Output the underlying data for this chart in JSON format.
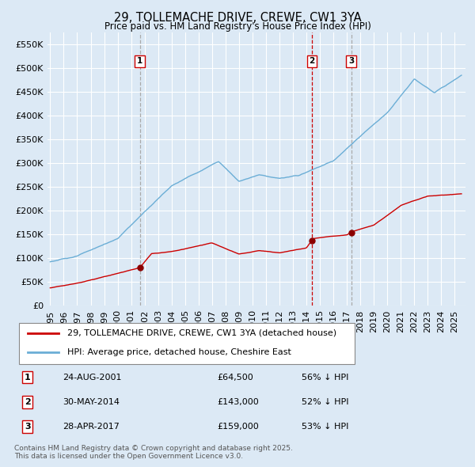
{
  "title": "29, TOLLEMACHE DRIVE, CREWE, CW1 3YA",
  "subtitle": "Price paid vs. HM Land Registry's House Price Index (HPI)",
  "background_color": "#dce9f5",
  "plot_bg_color": "#dce9f5",
  "yticks": [
    0,
    50000,
    100000,
    150000,
    200000,
    250000,
    300000,
    350000,
    400000,
    450000,
    500000,
    550000
  ],
  "ylim": [
    0,
    575000
  ],
  "xlim_start": 1994.8,
  "xlim_end": 2025.8,
  "hpi_color": "#6baed6",
  "price_color": "#cc0000",
  "sale_marker_color": "#8b0000",
  "vline_color_red": "#cc0000",
  "vline_color_gray": "#aaaaaa",
  "grid_color": "#ffffff",
  "legend_label_price": "29, TOLLEMACHE DRIVE, CREWE, CW1 3YA (detached house)",
  "legend_label_hpi": "HPI: Average price, detached house, Cheshire East",
  "sales": [
    {
      "label": "1",
      "date": "24-AUG-2001",
      "year": 2001.65,
      "price": 64500,
      "price_str": "£64,500",
      "pct": "56%",
      "vline_red": false
    },
    {
      "label": "2",
      "date": "30-MAY-2014",
      "year": 2014.41,
      "price": 143000,
      "price_str": "£143,000",
      "pct": "52%",
      "vline_red": true
    },
    {
      "label": "3",
      "date": "28-APR-2017",
      "year": 2017.32,
      "price": 159000,
      "price_str": "£159,000",
      "pct": "53%",
      "vline_red": false
    }
  ],
  "footnote1": "Contains HM Land Registry data © Crown copyright and database right 2025.",
  "footnote2": "This data is licensed under the Open Government Licence v3.0."
}
